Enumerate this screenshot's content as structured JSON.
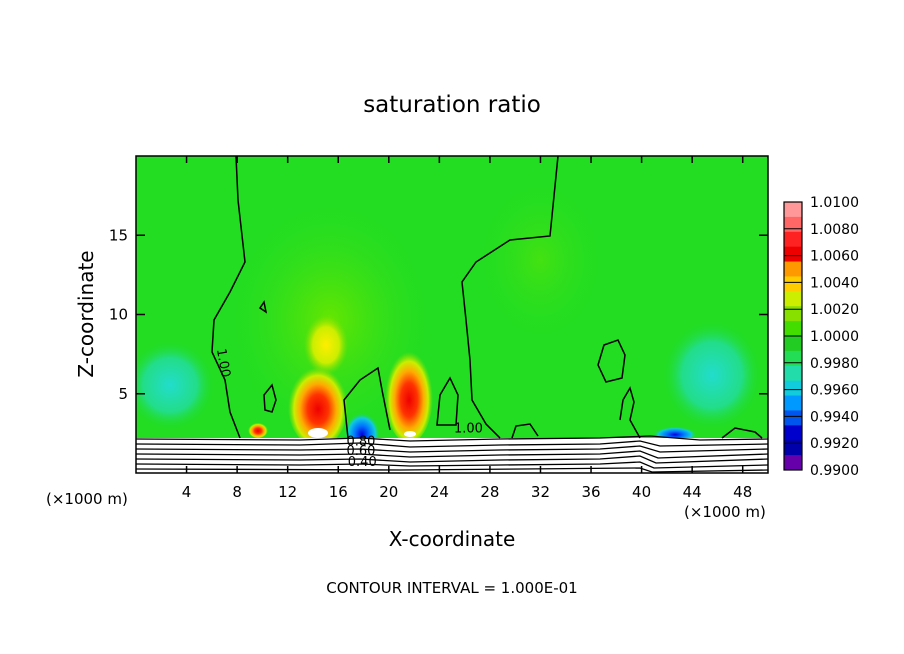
{
  "chart_data": {
    "type": "heatmap",
    "title": "saturation ratio",
    "xlabel": "X-coordinate",
    "ylabel": "Z-coordinate",
    "x_unit": "(×1000 m)",
    "x_unit_right": "(×1000 m)",
    "xlim": [
      0,
      50
    ],
    "ylim": [
      0,
      20
    ],
    "xticks": [
      4,
      8,
      12,
      16,
      20,
      24,
      28,
      32,
      36,
      40,
      44,
      48
    ],
    "yticks": [
      5,
      10,
      15
    ],
    "footer": "CONTOUR INTERVAL = 1.000E-01",
    "colorbar": {
      "labels": [
        "1.0100",
        "1.0080",
        "1.0060",
        "1.0040",
        "1.0020",
        "1.0000",
        "0.9980",
        "0.9960",
        "0.9940",
        "0.9920",
        "0.9900"
      ],
      "colors": [
        "#ff9999",
        "#ff6666",
        "#ff2222",
        "#ee0000",
        "#ff9900",
        "#ffcc00",
        "#ccee00",
        "#88e000",
        "#44dd00",
        "#22cc22",
        "#22dd55",
        "#22ddaa",
        "#11ccdd",
        "#0099ff",
        "#0055ee",
        "#0000cc",
        "#0000aa",
        "#6600aa"
      ]
    },
    "contour_labels": [
      {
        "text": "1.00",
        "x": 6.6,
        "z": 6.9,
        "rotate": 80
      },
      {
        "text": "1.00",
        "x": 26.3,
        "z": 2.55,
        "rotate": 0
      },
      {
        "text": "0.80",
        "x": 17.8,
        "z": 1.75,
        "rotate": 0
      },
      {
        "text": "0.60",
        "x": 17.8,
        "z": 1.15,
        "rotate": 0
      },
      {
        "text": "0.40",
        "x": 17.9,
        "z": 0.45,
        "rotate": 0
      }
    ]
  }
}
